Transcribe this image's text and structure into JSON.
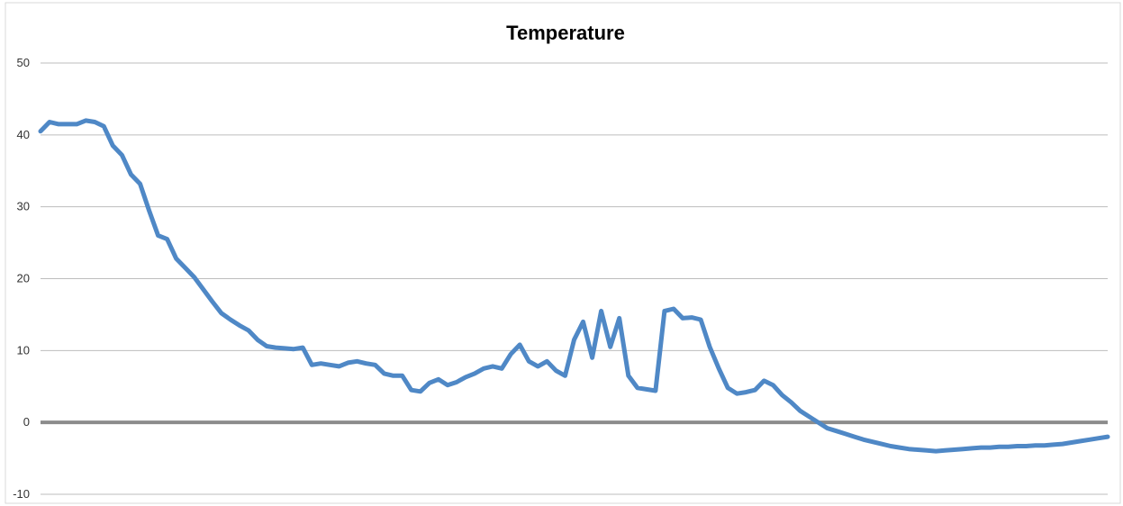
{
  "chart_data": {
    "type": "line",
    "title": "Temperature",
    "xlabel": "",
    "ylabel": "",
    "ylim": [
      -10,
      50
    ],
    "yticks": [
      "-10",
      "0",
      "10",
      "20",
      "30",
      "40",
      "50"
    ],
    "grid": true,
    "legend": "none",
    "zero_line": true,
    "colors": {
      "series": "#4f88c6",
      "grid": "#bdbdbd",
      "zero_line": "#8c8c8c"
    },
    "series": [
      {
        "x": [
          0,
          10,
          20,
          30,
          40,
          50,
          60,
          70,
          80,
          90,
          100,
          110,
          120,
          130,
          140,
          150,
          160,
          170,
          180,
          190,
          200,
          210,
          220,
          230,
          240,
          250,
          260,
          270,
          280,
          290,
          300,
          310,
          320,
          330,
          340,
          350,
          360,
          370,
          380,
          390,
          400,
          410,
          420,
          430,
          440,
          450,
          460,
          470,
          480,
          490,
          500,
          510,
          520,
          530,
          540,
          550,
          560,
          570,
          580,
          590,
          600,
          610,
          620,
          630,
          640,
          650,
          660,
          670,
          680,
          690,
          700,
          710,
          720,
          730,
          740,
          750,
          760,
          770,
          780,
          790,
          800,
          810,
          820,
          830,
          840,
          850,
          860,
          870,
          880,
          890,
          900,
          910,
          920,
          930,
          940,
          950,
          960,
          970,
          980,
          990,
          1000,
          1010,
          1020,
          1030,
          1040,
          1050,
          1060,
          1070,
          1080,
          1090,
          1100,
          1110,
          1120,
          1130,
          1140,
          1150,
          1160,
          1170,
          1180
        ],
        "values": [
          40.5,
          41.8,
          41.5,
          41.5,
          41.5,
          42.0,
          41.8,
          41.2,
          38.5,
          37.2,
          34.5,
          33.2,
          29.5,
          26.0,
          25.5,
          22.8,
          21.5,
          20.2,
          18.5,
          16.8,
          15.2,
          14.3,
          13.5,
          12.8,
          11.5,
          10.6,
          10.4,
          10.3,
          10.2,
          10.4,
          8.0,
          8.2,
          8.0,
          7.8,
          8.3,
          8.5,
          8.2,
          8.0,
          6.8,
          6.5,
          6.5,
          4.5,
          4.3,
          5.5,
          6.0,
          5.2,
          5.6,
          6.3,
          6.8,
          7.5,
          7.8,
          7.5,
          9.5,
          10.8,
          8.5,
          7.8,
          8.5,
          7.2,
          6.5,
          11.5,
          14.0,
          9.0,
          15.5,
          10.5,
          14.5,
          6.5,
          4.8,
          4.6,
          4.4,
          15.5,
          15.8,
          14.5,
          14.6,
          14.3,
          10.5,
          7.5,
          4.8,
          4.0,
          4.2,
          4.5,
          5.8,
          5.2,
          3.8,
          2.8,
          1.6,
          0.8,
          0.0,
          -0.8,
          -1.2,
          -1.6,
          -2.0,
          -2.4,
          -2.7,
          -3.0,
          -3.3,
          -3.5,
          -3.7,
          -3.8,
          -3.9,
          -4.0,
          -3.9,
          -3.8,
          -3.7,
          -3.6,
          -3.5,
          -3.5,
          -3.4,
          -3.4,
          -3.3,
          -3.3,
          -3.2,
          -3.2,
          -3.1,
          -3.0,
          -2.8,
          -2.6,
          -2.4,
          -2.2,
          -2.0
        ]
      }
    ]
  }
}
